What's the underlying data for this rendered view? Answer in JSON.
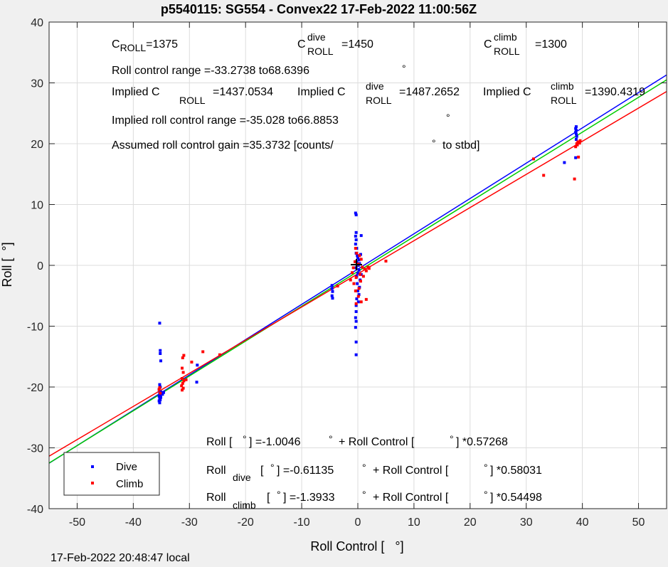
{
  "title": "p5540115: SG554 - Convex22 17-Feb-2022 11:00:56Z",
  "footer": "17-Feb-2022 20:48:47 local",
  "colors": {
    "dive": "#0000ff",
    "climb": "#ff0000",
    "green": "#00cc00",
    "grid": "#dcdcdc"
  },
  "annotations": {
    "croll": {
      "base": "C",
      "sub": "ROLL",
      "value": "=1375"
    },
    "croll_dive": {
      "base": "C",
      "sup": "dive",
      "sub": "ROLL",
      "value": "=1450"
    },
    "croll_climb": {
      "base": "C",
      "sup": "climb",
      "sub": "ROLL",
      "value": "=1300"
    },
    "roll_range": {
      "text": "Roll control range =-33.2738 to68.6396",
      "deg": "°"
    },
    "implied_croll": {
      "base": "Implied C",
      "sub": "ROLL",
      "value": "=1437.0534"
    },
    "implied_croll_dive": {
      "base": "Implied C",
      "sup": "dive",
      "sub": "ROLL",
      "value": "=1487.2652"
    },
    "implied_croll_climb": {
      "base": "Implied C",
      "sup": "climb",
      "sub": "ROLL",
      "value": "=1390.4319"
    },
    "implied_range": {
      "text": "Implied roll control range =-35.028 to66.8853",
      "deg": "°"
    },
    "gain": {
      "text": "Assumed roll control gain =35.3732 [counts/",
      "deg": "°",
      "tail": "to stbd]"
    },
    "fit_all": {
      "a": "Roll [",
      "deg1": "°",
      "b": "] =-1.0046",
      "deg2": "°",
      "c": "+ Roll Control [",
      "deg3": "°",
      "d": "] *0.57268"
    },
    "fit_dive": {
      "a": "Roll",
      "sub": "dive",
      "b": "[",
      "deg1": "°",
      "c": "] =-0.61135",
      "deg2": "°",
      "d": "+ Roll Control [",
      "deg3": "°",
      "e": "] *0.58031"
    },
    "fit_climb": {
      "a": "Roll",
      "sub": "climb",
      "b": "[",
      "deg1": "°",
      "c": "] =-1.3933",
      "deg2": "°",
      "d": "+ Roll Control [",
      "deg3": "°",
      "e": "] *0.54498"
    }
  },
  "chart_data": {
    "type": "scatter",
    "title": "p5540115: SG554 - Convex22 17-Feb-2022 11:00:56Z",
    "xlabel": "Roll Control [   °]",
    "ylabel": "Roll [  °]",
    "xlim": [
      -55,
      55
    ],
    "ylim": [
      -40,
      40
    ],
    "xticks": [
      -50,
      -40,
      -30,
      -20,
      -10,
      0,
      10,
      20,
      30,
      40,
      50
    ],
    "yticks": [
      -40,
      -30,
      -20,
      -10,
      0,
      10,
      20,
      30,
      40
    ],
    "grid": true,
    "legend_position": "bottom-left",
    "series": [
      {
        "name": "Dive",
        "color": "#0000ff",
        "points": [
          [
            -35.3,
            -9.5
          ],
          [
            -35.2,
            -14.0
          ],
          [
            -35.2,
            -14.5
          ],
          [
            -35.1,
            -15.7
          ],
          [
            -35.3,
            -19.6
          ],
          [
            -35.2,
            -20.0
          ],
          [
            -35.4,
            -20.4
          ],
          [
            -35.1,
            -20.8
          ],
          [
            -35.3,
            -21.0
          ],
          [
            -35.2,
            -21.3
          ],
          [
            -35.4,
            -21.5
          ],
          [
            -35.1,
            -21.7
          ],
          [
            -35.3,
            -21.9
          ],
          [
            -35.2,
            -22.1
          ],
          [
            -35.4,
            -22.3
          ],
          [
            -35.3,
            -22.6
          ],
          [
            -34.8,
            -21.2
          ],
          [
            -34.6,
            -20.9
          ],
          [
            -28.6,
            -16.4
          ],
          [
            -28.7,
            -19.2
          ],
          [
            -4.6,
            -3.3
          ],
          [
            -4.6,
            -3.8
          ],
          [
            -4.5,
            -4.3
          ],
          [
            -4.6,
            -5.0
          ],
          [
            -4.5,
            -5.4
          ],
          [
            -0.4,
            8.6
          ],
          [
            -0.3,
            8.3
          ],
          [
            -0.3,
            5.4
          ],
          [
            -0.4,
            4.8
          ],
          [
            -0.3,
            4.2
          ],
          [
            -0.4,
            3.5
          ],
          [
            -0.2,
            2.8
          ],
          [
            -0.3,
            2.0
          ],
          [
            -0.1,
            1.6
          ],
          [
            0.0,
            1.2
          ],
          [
            0.2,
            0.9
          ],
          [
            -0.2,
            0.6
          ],
          [
            0.3,
            0.3
          ],
          [
            0.1,
            0.0
          ],
          [
            -0.3,
            -0.4
          ],
          [
            0.2,
            -0.8
          ],
          [
            0.0,
            -1.3
          ],
          [
            -0.2,
            -1.8
          ],
          [
            0.4,
            -2.4
          ],
          [
            -0.1,
            -3.0
          ],
          [
            0.3,
            -3.6
          ],
          [
            0.0,
            -4.2
          ],
          [
            0.2,
            -4.8
          ],
          [
            -0.2,
            -5.5
          ],
          [
            0.1,
            -6.0
          ],
          [
            -0.3,
            -6.6
          ],
          [
            -0.3,
            -7.6
          ],
          [
            -0.4,
            -8.6
          ],
          [
            -0.3,
            -9.2
          ],
          [
            -0.4,
            -10.2
          ],
          [
            -0.3,
            -12.6
          ],
          [
            -0.3,
            -14.7
          ],
          [
            0.6,
            4.9
          ],
          [
            0.5,
            1.8
          ],
          [
            0.6,
            -1.5
          ],
          [
            36.8,
            16.9
          ],
          [
            38.8,
            17.7
          ],
          [
            38.9,
            21.6
          ],
          [
            38.8,
            21.9
          ],
          [
            38.9,
            22.2
          ],
          [
            38.8,
            22.5
          ],
          [
            38.9,
            22.8
          ],
          [
            39.0,
            21.2
          ],
          [
            38.9,
            20.7
          ]
        ]
      },
      {
        "name": "Climb",
        "color": "#ff0000",
        "points": [
          [
            -35.3,
            -20.1
          ],
          [
            -35.4,
            -20.4
          ],
          [
            -35.2,
            -21.0
          ],
          [
            -31.0,
            -14.8
          ],
          [
            -31.2,
            -15.2
          ],
          [
            -31.3,
            -16.9
          ],
          [
            -31.1,
            -17.6
          ],
          [
            -31.3,
            -18.6
          ],
          [
            -31.0,
            -19.0
          ],
          [
            -31.2,
            -19.4
          ],
          [
            -31.4,
            -19.8
          ],
          [
            -31.1,
            -20.2
          ],
          [
            -31.3,
            -20.5
          ],
          [
            -30.6,
            -18.8
          ],
          [
            -29.6,
            -15.9
          ],
          [
            -27.6,
            -14.2
          ],
          [
            -24.6,
            -14.7
          ],
          [
            -3.6,
            -3.4
          ],
          [
            -0.4,
            2.8
          ],
          [
            -0.2,
            2.0
          ],
          [
            0.3,
            1.6
          ],
          [
            0.6,
            1.0
          ],
          [
            -0.5,
            0.6
          ],
          [
            0.1,
            0.2
          ],
          [
            0.8,
            -0.3
          ],
          [
            1.2,
            -0.6
          ],
          [
            1.5,
            -0.9
          ],
          [
            -0.8,
            -0.4
          ],
          [
            -1.0,
            -1.2
          ],
          [
            0.4,
            -1.5
          ],
          [
            -0.3,
            -2.0
          ],
          [
            0.5,
            -2.6
          ],
          [
            -0.7,
            -3.0
          ],
          [
            0.2,
            -3.8
          ],
          [
            1.0,
            -1.8
          ],
          [
            -1.3,
            -2.4
          ],
          [
            -0.4,
            -4.2
          ],
          [
            0.1,
            -5.1
          ],
          [
            0.6,
            -6.0
          ],
          [
            -0.3,
            -6.3
          ],
          [
            1.5,
            -5.6
          ],
          [
            1.8,
            -0.3
          ],
          [
            2.0,
            -0.5
          ],
          [
            5.0,
            0.7
          ],
          [
            31.3,
            17.5
          ],
          [
            33.1,
            14.8
          ],
          [
            38.6,
            14.2
          ],
          [
            38.8,
            19.5
          ],
          [
            39.0,
            20.0
          ],
          [
            39.2,
            20.3
          ],
          [
            39.5,
            20.1
          ],
          [
            39.1,
            19.8
          ],
          [
            39.3,
            17.8
          ],
          [
            39.6,
            20.5
          ]
        ]
      }
    ],
    "fit_lines": [
      {
        "name": "Dive",
        "color": "#0000ff",
        "intercept": -0.61135,
        "slope": 0.58031
      },
      {
        "name": "All",
        "color": "#00cc00",
        "intercept": -1.0046,
        "slope": 0.57268
      },
      {
        "name": "Climb",
        "color": "#ff0000",
        "intercept": -1.3933,
        "slope": 0.54498
      }
    ],
    "legend": [
      {
        "label": "Dive",
        "color": "#0000ff"
      },
      {
        "label": "Climb",
        "color": "#ff0000"
      }
    ]
  }
}
